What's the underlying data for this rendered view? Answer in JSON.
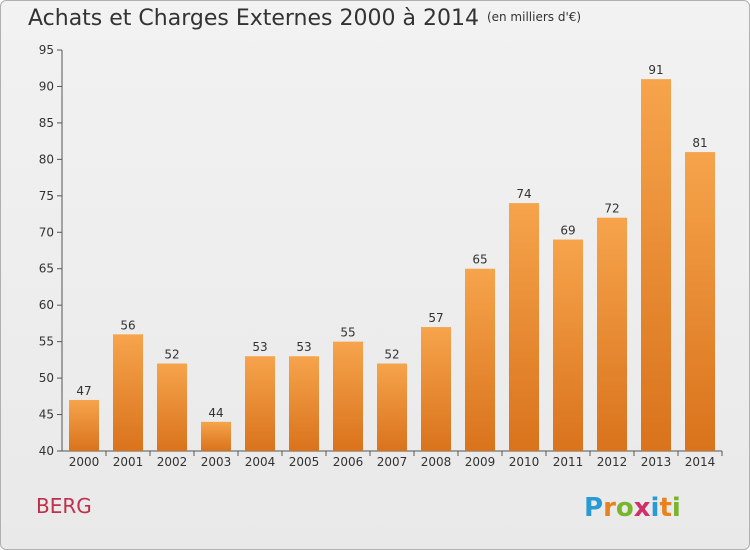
{
  "header": {
    "title": "Achats et Charges Externes 2000 à 2014",
    "subtitle": "(en milliers d'€)"
  },
  "footer": {
    "commune": "BERG",
    "logo_text": "Proxiti"
  },
  "colors": {
    "bar_light": "#f6a44c",
    "bar_dark": "#d9731c",
    "commune": "#c0304a"
  },
  "chart_data": {
    "type": "bar",
    "title": "Achats et Charges Externes 2000 à 2014",
    "subtitle": "(en milliers d'€)",
    "categories": [
      "2000",
      "2001",
      "2002",
      "2003",
      "2004",
      "2005",
      "2006",
      "2007",
      "2008",
      "2009",
      "2010",
      "2011",
      "2012",
      "2013",
      "2014"
    ],
    "values": [
      47,
      56,
      52,
      44,
      53,
      53,
      55,
      52,
      57,
      65,
      74,
      69,
      72,
      91,
      81
    ],
    "xlabel": "",
    "ylabel": "",
    "ylim": [
      40,
      95
    ],
    "yticks": [
      40,
      45,
      50,
      55,
      60,
      65,
      70,
      75,
      80,
      85,
      90,
      95
    ],
    "grid": false,
    "legend": "none"
  }
}
